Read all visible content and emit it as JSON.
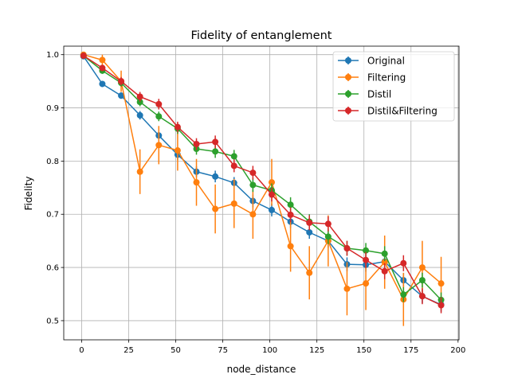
{
  "chart_data": {
    "type": "line",
    "title": "Fidelity of entanglement",
    "xlabel": "node_distance",
    "ylabel": "Fidelity",
    "xlim": [
      -9.5,
      200.5
    ],
    "ylim": [
      0.464,
      1.016
    ],
    "xticks": [
      0,
      25,
      50,
      75,
      100,
      125,
      150,
      175,
      200
    ],
    "yticks": [
      0.5,
      0.6,
      0.7,
      0.8,
      0.9,
      1.0
    ],
    "grid": true,
    "legend_position": "top-right",
    "x": [
      1,
      11,
      21,
      31,
      41,
      51,
      61,
      71,
      81,
      91,
      101,
      111,
      121,
      131,
      141,
      151,
      161,
      171,
      181,
      191
    ],
    "series": [
      {
        "name": "Original",
        "color": "#1f77b4",
        "values": [
          0.997,
          0.945,
          0.923,
          0.886,
          0.848,
          0.812,
          0.78,
          0.771,
          0.759,
          0.725,
          0.708,
          0.686,
          0.666,
          0.65,
          0.606,
          0.605,
          0.611,
          0.576,
          0.546,
          0.53
        ],
        "errors": [
          0.003,
          0.005,
          0.006,
          0.008,
          0.009,
          0.01,
          0.01,
          0.011,
          0.011,
          0.012,
          0.012,
          0.012,
          0.012,
          0.013,
          0.013,
          0.013,
          0.013,
          0.013,
          0.013,
          0.013
        ]
      },
      {
        "name": "Filtering",
        "color": "#ff7f0e",
        "values": [
          1.0,
          0.99,
          0.95,
          0.78,
          0.83,
          0.82,
          0.76,
          0.71,
          0.72,
          0.7,
          0.76,
          0.64,
          0.59,
          0.65,
          0.56,
          0.57,
          0.61,
          0.54,
          0.6,
          0.57
        ],
        "errors": [
          0.002,
          0.01,
          0.02,
          0.042,
          0.036,
          0.038,
          0.044,
          0.046,
          0.046,
          0.046,
          0.044,
          0.048,
          0.05,
          0.048,
          0.05,
          0.05,
          0.05,
          0.05,
          0.05,
          0.05
        ]
      },
      {
        "name": "Distil",
        "color": "#2ca02c",
        "values": [
          0.998,
          0.97,
          0.947,
          0.911,
          0.884,
          0.861,
          0.823,
          0.818,
          0.809,
          0.755,
          0.745,
          0.718,
          0.686,
          0.658,
          0.636,
          0.632,
          0.626,
          0.549,
          0.576,
          0.539
        ],
        "errors": [
          0.002,
          0.006,
          0.007,
          0.008,
          0.009,
          0.01,
          0.011,
          0.012,
          0.012,
          0.013,
          0.013,
          0.014,
          0.014,
          0.014,
          0.014,
          0.014,
          0.014,
          0.014,
          0.014,
          0.014
        ]
      },
      {
        "name": "Distil&Filtering",
        "color": "#d62728",
        "values": [
          0.998,
          0.975,
          0.95,
          0.921,
          0.907,
          0.864,
          0.832,
          0.836,
          0.791,
          0.778,
          0.737,
          0.699,
          0.684,
          0.682,
          0.636,
          0.614,
          0.593,
          0.608,
          0.546,
          0.529
        ],
        "errors": [
          0.002,
          0.006,
          0.008,
          0.009,
          0.01,
          0.01,
          0.011,
          0.012,
          0.012,
          0.013,
          0.013,
          0.014,
          0.014,
          0.014,
          0.014,
          0.015,
          0.015,
          0.015,
          0.015,
          0.015
        ]
      }
    ]
  }
}
